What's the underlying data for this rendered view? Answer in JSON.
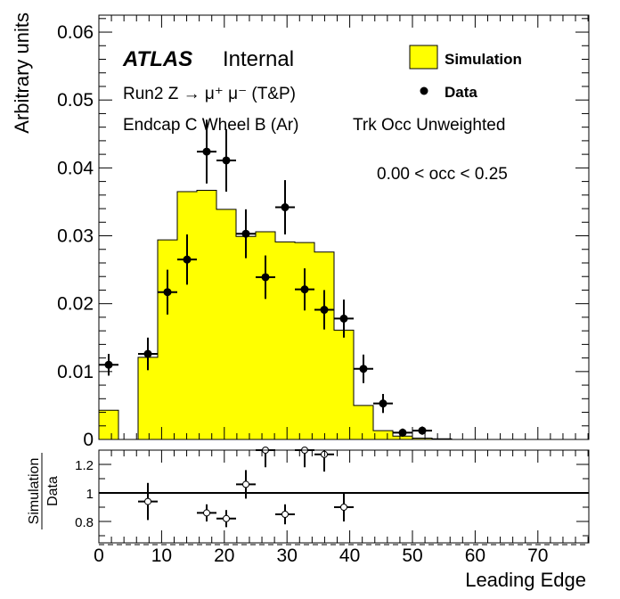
{
  "chart_data": [
    {
      "type": "bar",
      "role": "main-panel",
      "ylabel": "Arbitrary units",
      "ylim": [
        0,
        0.0625
      ],
      "y_ticks": [
        "0",
        "0.01",
        "0.02",
        "0.03",
        "0.04",
        "0.05",
        "0.06"
      ],
      "y_tick_values": [
        0,
        0.01,
        0.02,
        0.03,
        0.04,
        0.05,
        0.06
      ],
      "xlim": [
        0,
        78.125
      ],
      "atlas_label": "ATLAS",
      "internal_label": "Internal",
      "process": "Run2 Z → μ⁺ μ⁻ (T&P)",
      "region": "Endcap C Wheel B (Ar)",
      "weighting": "Trk Occ Unweighted",
      "cut": "0.00 < occ < 0.25",
      "legend": {
        "placement": "top-right",
        "simulation": "Simulation",
        "data": "Data"
      },
      "colors": {
        "simulation_fill": "#ffff00",
        "line": "#000000"
      },
      "bin_width": 3.125,
      "series": [
        {
          "name": "Simulation",
          "style": "filled-histogram",
          "bin_edges": [
            0,
            3.125,
            6.25,
            9.375,
            12.5,
            15.625,
            18.75,
            21.875,
            25,
            28.125,
            31.25,
            34.375,
            37.5,
            40.625,
            43.75,
            46.875,
            50,
            53.125,
            56.25
          ],
          "values": [
            0.0043,
            0,
            0.0121,
            0.0294,
            0.0365,
            0.0367,
            0.0339,
            0.0299,
            0.0306,
            0.0291,
            0.029,
            0.0276,
            0.0161,
            0.005,
            0.0013,
            0.0005,
            0.0002,
            0.0001
          ]
        },
        {
          "name": "Data",
          "style": "points-with-errors",
          "points": [
            {
              "x": 1.5625,
              "y": 0.011,
              "err": 0.0016
            },
            {
              "x": 7.8125,
              "y": 0.0126,
              "err": 0.0024
            },
            {
              "x": 10.9375,
              "y": 0.0217,
              "err": 0.0033
            },
            {
              "x": 14.0625,
              "y": 0.0265,
              "err": 0.0037
            },
            {
              "x": 17.1875,
              "y": 0.0424,
              "err": 0.0047
            },
            {
              "x": 20.3125,
              "y": 0.0411,
              "err": 0.0046
            },
            {
              "x": 23.4375,
              "y": 0.0303,
              "err": 0.0036
            },
            {
              "x": 26.5625,
              "y": 0.0239,
              "err": 0.0032
            },
            {
              "x": 29.6875,
              "y": 0.0342,
              "err": 0.004
            },
            {
              "x": 32.8125,
              "y": 0.0221,
              "err": 0.0031
            },
            {
              "x": 35.9375,
              "y": 0.0191,
              "err": 0.0029
            },
            {
              "x": 39.0625,
              "y": 0.0178,
              "err": 0.0028
            },
            {
              "x": 42.1875,
              "y": 0.0104,
              "err": 0.0021
            },
            {
              "x": 45.3125,
              "y": 0.0053,
              "err": 0.0014
            },
            {
              "x": 48.4375,
              "y": 0.001,
              "err": 0.0006
            },
            {
              "x": 51.5625,
              "y": 0.0013,
              "err": 0.0006
            }
          ]
        }
      ]
    },
    {
      "type": "scatter",
      "role": "ratio-panel",
      "ylabel_numerator": "Simulation",
      "ylabel_denominator": "Data",
      "ylim": [
        0.65,
        1.3
      ],
      "y_ticks": [
        "0.8",
        "1",
        "1.2"
      ],
      "y_tick_values": [
        0.8,
        1.0,
        1.2
      ],
      "reference_line": 1,
      "xlabel": "Leading Edge",
      "xlim": [
        0,
        78.125
      ],
      "x_ticks": [
        "0",
        "10",
        "20",
        "30",
        "40",
        "50",
        "60",
        "70"
      ],
      "x_tick_values": [
        0,
        10,
        20,
        30,
        40,
        50,
        60,
        70
      ],
      "points": [
        {
          "x": 7.8125,
          "y": 0.94,
          "err": 0.13
        },
        {
          "x": 17.1875,
          "y": 0.86,
          "err": 0.06
        },
        {
          "x": 20.3125,
          "y": 0.82,
          "err": 0.06
        },
        {
          "x": 23.4375,
          "y": 1.06,
          "err": 0.1
        },
        {
          "x": 26.5625,
          "y": 1.3,
          "err": 0.12
        },
        {
          "x": 29.6875,
          "y": 0.85,
          "err": 0.07
        },
        {
          "x": 32.8125,
          "y": 1.3,
          "err": 0.12
        },
        {
          "x": 35.9375,
          "y": 1.27,
          "err": 0.12
        },
        {
          "x": 39.0625,
          "y": 0.9,
          "err": 0.1
        }
      ]
    }
  ]
}
